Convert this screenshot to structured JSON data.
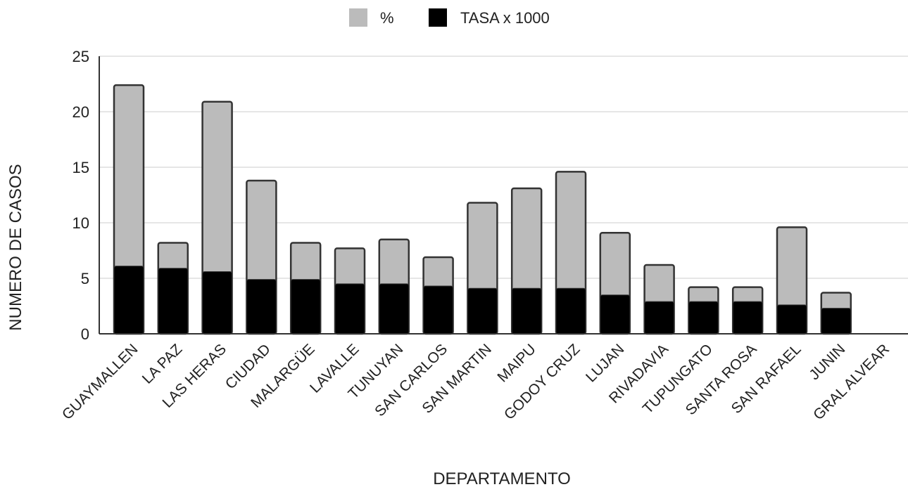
{
  "chart_data": {
    "type": "bar",
    "stacked": "overlay",
    "xlabel": "DEPARTAMENTO",
    "ylabel": "NUMERO DE CASOS",
    "ylim": [
      0,
      25
    ],
    "yticks": [
      0,
      5,
      10,
      15,
      20,
      25
    ],
    "grid": true,
    "legend_position": "top",
    "categories": [
      "GUAYMALLEN",
      "LA PAZ",
      "LAS HERAS",
      "CIUDAD",
      "MALARGÜE",
      "LAVALLE",
      "TUNUYAN",
      "SAN CARLOS",
      "SAN  MARTIN",
      "MAIPU",
      "GODOY CRUZ",
      "LUJAN",
      "RIVADAVIA",
      "TUPUNGATO",
      "SANTA ROSA",
      "SAN RAFAEL",
      "JUNIN",
      "GRAL ALVEAR"
    ],
    "series": [
      {
        "name": "%",
        "color": "#bbbbbb",
        "values": [
          22.4,
          8.2,
          20.9,
          13.8,
          8.2,
          7.7,
          8.5,
          6.9,
          11.8,
          13.1,
          14.6,
          9.1,
          6.2,
          4.2,
          4.2,
          9.6,
          3.7,
          0
        ]
      },
      {
        "name": "TASA x 1000",
        "color": "#000000",
        "values": [
          6.1,
          5.9,
          5.6,
          4.9,
          4.9,
          4.5,
          4.5,
          4.3,
          4.1,
          4.1,
          4.1,
          3.5,
          2.9,
          2.9,
          2.9,
          2.6,
          2.3,
          0
        ]
      }
    ]
  }
}
